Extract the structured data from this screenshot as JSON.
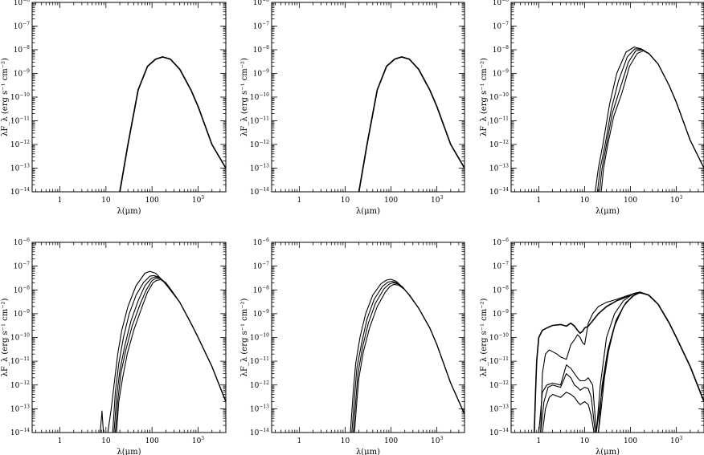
{
  "chart_data": [
    {
      "type": "line",
      "panel": "top-left",
      "xlabel": "λ(μm)",
      "ylabel": "λF_λ (erg s⁻¹ cm⁻²)",
      "x_scale": "log",
      "y_scale": "log",
      "xlim": [
        0.25,
        4000
      ],
      "ylim": [
        1e-14,
        1e-06
      ],
      "x_ticks": [
        "1",
        "10",
        "100",
        "10^3"
      ],
      "y_ticks": [
        "10^-14",
        "10^-13",
        "10^-12",
        "10^-11",
        "10^-10",
        "10^-9",
        "10^-8",
        "10^-7",
        "10^-6"
      ],
      "series": [
        {
          "x": [
            20,
            30,
            50,
            80,
            120,
            170,
            250,
            400,
            700,
            1000,
            2000,
            4000
          ],
          "y": [
            1e-14,
            1e-12,
            2e-10,
            2e-09,
            4e-09,
            5e-09,
            4e-09,
            1.5e-09,
            2e-10,
            4e-11,
            1e-12,
            1e-13
          ]
        }
      ]
    },
    {
      "type": "line",
      "panel": "top-middle",
      "xlabel": "λ(μm)",
      "ylabel": "λF_λ (erg s⁻¹ cm⁻²)",
      "x_scale": "log",
      "y_scale": "log",
      "xlim": [
        0.25,
        4000
      ],
      "ylim": [
        1e-14,
        1e-06
      ],
      "x_ticks": [
        "1",
        "10",
        "100",
        "10^3"
      ],
      "y_ticks": [
        "10^-14",
        "10^-13",
        "10^-12",
        "10^-11",
        "10^-10",
        "10^-9",
        "10^-8",
        "10^-7",
        "10^-6"
      ],
      "series": [
        {
          "x": [
            20,
            30,
            50,
            80,
            120,
            170,
            250,
            400,
            700,
            1000,
            2000,
            4000
          ],
          "y": [
            1e-14,
            1e-12,
            2e-10,
            2e-09,
            4e-09,
            5e-09,
            4e-09,
            1.5e-09,
            2e-10,
            4e-11,
            1e-12,
            1e-13
          ]
        }
      ]
    },
    {
      "type": "line",
      "panel": "top-right",
      "xlabel": "λ(μm)",
      "ylabel": "λF_λ (erg s⁻¹ cm⁻²)",
      "x_scale": "log",
      "y_scale": "log",
      "xlim": [
        0.25,
        4000
      ],
      "ylim": [
        1e-14,
        1e-06
      ],
      "x_ticks": [
        "1",
        "10",
        "100",
        "10^3"
      ],
      "y_ticks": [
        "10^-14",
        "10^-13",
        "10^-12",
        "10^-11",
        "10^-10",
        "10^-9",
        "10^-8",
        "10^-7",
        "10^-6"
      ],
      "series": [
        {
          "x": [
            17,
            20,
            25,
            35,
            50,
            80,
            120,
            170,
            250,
            400,
            700,
            1000,
            2000,
            4000
          ],
          "y": [
            1e-14,
            1e-13,
            1e-12,
            5e-11,
            1e-09,
            8e-09,
            1.3e-08,
            1.1e-08,
            7e-09,
            2.5e-09,
            3e-10,
            6e-11,
            1.5e-12,
            1e-13
          ]
        },
        {
          "x": [
            19,
            22,
            28,
            38,
            55,
            85,
            125,
            175,
            250,
            400,
            700,
            1000,
            2000,
            4000
          ],
          "y": [
            1e-14,
            1e-13,
            1e-12,
            3e-11,
            5e-10,
            5e-09,
            1.1e-08,
            1.05e-08,
            7e-09,
            2.5e-09,
            3e-10,
            6e-11,
            1.5e-12,
            1e-13
          ]
        },
        {
          "x": [
            21,
            24,
            30,
            40,
            60,
            90,
            130,
            180,
            250,
            400,
            700,
            1000,
            2000,
            4000
          ],
          "y": [
            1e-14,
            1e-13,
            1e-12,
            2e-11,
            2.5e-10,
            3e-09,
            9e-09,
            1e-08,
            7e-09,
            2.5e-09,
            3e-10,
            6e-11,
            1.5e-12,
            1e-13
          ]
        },
        {
          "x": [
            23,
            26,
            32,
            43,
            65,
            95,
            140,
            190,
            260,
            400,
            700,
            1000,
            2000,
            4000
          ],
          "y": [
            1e-14,
            1e-13,
            1e-12,
            1.5e-11,
            1.5e-10,
            2e-09,
            7e-09,
            9e-09,
            6.5e-09,
            2.5e-09,
            3e-10,
            6e-11,
            1.5e-12,
            1e-13
          ]
        }
      ]
    },
    {
      "type": "line",
      "panel": "bottom-left",
      "xlabel": "λ(μm)",
      "ylabel": "λF_λ (erg s⁻¹ cm⁻²)",
      "x_scale": "log",
      "y_scale": "log",
      "xlim": [
        0.25,
        4000
      ],
      "ylim": [
        1e-14,
        1e-06
      ],
      "x_ticks": [
        "1",
        "10",
        "100",
        "10^3"
      ],
      "y_ticks": [
        "10^-14",
        "10^-13",
        "10^-12",
        "10^-11",
        "10^-10",
        "10^-9",
        "10^-8",
        "10^-7",
        "10^-6"
      ],
      "series": [
        {
          "x": [
            7.5,
            8.2,
            8.8,
            9.5,
            11,
            13,
            15,
            18,
            22,
            30,
            45,
            70,
            90,
            120,
            170,
            250,
            400,
            700,
            1000,
            2000,
            4000
          ],
          "y": [
            1e-14,
            8e-14,
            1e-14,
            1e-14,
            1e-14,
            1e-13,
            1e-12,
            2e-11,
            2e-10,
            2e-09,
            1.5e-08,
            5e-08,
            6e-08,
            5e-08,
            2.5e-08,
            1e-08,
            3e-09,
            4e-10,
            1e-10,
            6e-12,
            2e-13
          ]
        },
        {
          "x": [
            14,
            16,
            19,
            24,
            32,
            45,
            65,
            90,
            110,
            140,
            190,
            250,
            400,
            700,
            1000,
            2000,
            4000
          ],
          "y": [
            1e-14,
            5e-13,
            8e-12,
            1e-10,
            1e-09,
            6e-09,
            2e-08,
            3.8e-08,
            4e-08,
            3.5e-08,
            2e-08,
            1e-08,
            3e-09,
            4e-10,
            1e-10,
            6e-12,
            2e-13
          ]
        },
        {
          "x": [
            15,
            17,
            20,
            26,
            35,
            50,
            70,
            95,
            115,
            145,
            190,
            250,
            400,
            700,
            1000,
            2000,
            4000
          ],
          "y": [
            1e-14,
            3e-13,
            4e-12,
            5e-11,
            5e-10,
            3.5e-09,
            1.5e-08,
            3e-08,
            3.5e-08,
            3.3e-08,
            2e-08,
            1e-08,
            3e-09,
            4e-10,
            1e-10,
            6e-12,
            2e-13
          ]
        },
        {
          "x": [
            16,
            18,
            21,
            27,
            37,
            55,
            75,
            100,
            120,
            150,
            200,
            260,
            400,
            700,
            1000,
            2000,
            4000
          ],
          "y": [
            1e-14,
            2e-13,
            3e-12,
            3e-11,
            3e-10,
            2.5e-09,
            1e-08,
            2.5e-08,
            3e-08,
            3e-08,
            2e-08,
            1e-08,
            3e-09,
            4e-10,
            1e-10,
            6e-12,
            2e-13
          ]
        },
        {
          "x": [
            17,
            19,
            23,
            29,
            40,
            60,
            80,
            105,
            125,
            155,
            200,
            260,
            400,
            700,
            1000,
            2000,
            4000
          ],
          "y": [
            1e-14,
            2e-13,
            2e-12,
            2e-11,
            2e-10,
            1.8e-09,
            8e-09,
            2e-08,
            2.5e-08,
            2.7e-08,
            1.9e-08,
            1e-08,
            3e-09,
            4e-10,
            1e-10,
            6e-12,
            2e-13
          ]
        }
      ]
    },
    {
      "type": "line",
      "panel": "bottom-middle",
      "xlabel": "λ(μm)",
      "ylabel": "λF_λ (erg s⁻¹ cm⁻²)",
      "x_scale": "log",
      "y_scale": "log",
      "xlim": [
        0.25,
        4000
      ],
      "ylim": [
        1e-14,
        1e-06
      ],
      "x_ticks": [
        "1",
        "10",
        "100",
        "10^3"
      ],
      "y_ticks": [
        "10^-14",
        "10^-13",
        "10^-12",
        "10^-11",
        "10^-10",
        "10^-9",
        "10^-8",
        "10^-7",
        "10^-6"
      ],
      "series": [
        {
          "x": [
            13,
            15,
            17,
            21,
            28,
            40,
            60,
            80,
            100,
            130,
            180,
            250,
            400,
            700,
            1000,
            2000,
            4000
          ],
          "y": [
            1e-14,
            5e-13,
            8e-12,
            1e-10,
            1e-09,
            6e-09,
            1.8e-08,
            2.6e-08,
            2.8e-08,
            2.3e-08,
            1.3e-08,
            6e-09,
            1.7e-09,
            2.5e-10,
            5e-11,
            1.2e-12,
            6e-14
          ]
        },
        {
          "x": [
            14,
            16,
            18,
            23,
            30,
            43,
            65,
            85,
            105,
            135,
            180,
            250,
            400,
            700,
            1000,
            2000,
            4000
          ],
          "y": [
            1e-14,
            3e-13,
            5e-12,
            6e-11,
            6e-10,
            4e-09,
            1.4e-08,
            2.1e-08,
            2.3e-08,
            2e-08,
            1.3e-08,
            6e-09,
            1.7e-09,
            2.5e-10,
            5e-11,
            1.2e-12,
            6e-14
          ]
        },
        {
          "x": [
            15,
            17,
            19,
            24,
            32,
            46,
            70,
            90,
            110,
            140,
            185,
            250,
            400,
            700,
            1000,
            2000,
            4000
          ],
          "y": [
            1e-14,
            2e-13,
            3e-12,
            4e-11,
            4e-10,
            2.8e-09,
            1.1e-08,
            1.7e-08,
            2e-08,
            1.8e-08,
            1.2e-08,
            6e-09,
            1.7e-09,
            2.5e-10,
            5e-11,
            1.2e-12,
            6e-14
          ]
        },
        {
          "x": [
            16,
            18,
            20,
            25,
            34,
            50,
            75,
            95,
            115,
            145,
            190,
            255,
            400,
            700,
            1000,
            2000,
            4000
          ],
          "y": [
            1e-14,
            2e-13,
            2e-12,
            2.5e-11,
            2.5e-10,
            2e-09,
            8e-09,
            1.4e-08,
            1.7e-08,
            1.6e-08,
            1.1e-08,
            6e-09,
            1.7e-09,
            2.5e-10,
            5e-11,
            1.2e-12,
            6e-14
          ]
        }
      ]
    },
    {
      "type": "line",
      "panel": "bottom-right",
      "xlabel": "λ(μm)",
      "ylabel": "λF_λ (erg s⁻¹ cm⁻²)",
      "x_scale": "log",
      "y_scale": "log",
      "xlim": [
        0.25,
        4000
      ],
      "ylim": [
        1e-14,
        1e-06
      ],
      "x_ticks": [
        "1",
        "10",
        "100",
        "10^3"
      ],
      "y_ticks": [
        "10^-14",
        "10^-13",
        "10^-12",
        "10^-11",
        "10^-10",
        "10^-9",
        "10^-8",
        "10^-7",
        "10^-6"
      ],
      "series": [
        {
          "x": [
            0.8,
            0.85,
            0.9,
            1.0,
            1.2,
            1.5,
            2,
            3,
            4,
            5,
            6,
            7,
            8,
            9,
            10,
            12,
            15,
            20,
            30,
            50,
            80,
            120,
            160,
            250,
            400,
            700,
            1000,
            2000,
            4000
          ],
          "y": [
            1e-14,
            4e-13,
            1e-11,
            1e-10,
            2e-10,
            2.5e-10,
            3.2e-10,
            3.5e-10,
            3e-10,
            4e-10,
            3e-10,
            2e-10,
            1.5e-10,
            1.8e-10,
            2.5e-10,
            3e-10,
            5e-10,
            1e-09,
            2e-09,
            3.5e-09,
            5e-09,
            7e-09,
            8e-09,
            6e-09,
            2.5e-09,
            4e-10,
            1e-10,
            6e-12,
            2e-13
          ]
        },
        {
          "x": [
            1.1,
            1.2,
            1.4,
            1.7,
            2,
            2.5,
            3,
            4,
            5,
            6,
            7,
            8,
            9,
            10,
            12,
            15,
            20,
            30,
            50,
            80,
            120,
            160,
            250,
            400,
            700,
            1000,
            2000,
            4000
          ],
          "y": [
            1e-14,
            3e-12,
            2e-11,
            3e-11,
            2.5e-11,
            2e-11,
            1.5e-11,
            1.2e-11,
            5e-11,
            8e-11,
            1.3e-10,
            1e-10,
            6e-11,
            5e-11,
            4e-10,
            1e-09,
            2e-09,
            3e-09,
            4e-09,
            5.5e-09,
            7e-09,
            8e-09,
            6e-09,
            2.5e-09,
            4e-10,
            1e-10,
            6e-12,
            2e-13
          ]
        },
        {
          "x": [
            1.0,
            1.2,
            1.5,
            2,
            3,
            4,
            5,
            6,
            7,
            8,
            10,
            12,
            15,
            18,
            22,
            30,
            45,
            70,
            110,
            160,
            250,
            400,
            700,
            1000,
            2000,
            4000
          ],
          "y": [
            1e-14,
            5e-13,
            1e-12,
            1.2e-12,
            1e-12,
            7e-12,
            5e-12,
            3e-12,
            2e-12,
            1.5e-12,
            1.5e-12,
            2e-12,
            1e-12,
            1e-14,
            1e-12,
            1e-10,
            1e-09,
            3.5e-09,
            6.5e-09,
            8e-09,
            6e-09,
            2.5e-09,
            4e-10,
            1e-10,
            6e-12,
            2e-13
          ]
        },
        {
          "x": [
            1.1,
            1.3,
            1.6,
            2,
            3,
            4,
            5,
            6,
            7,
            8,
            10,
            12,
            14,
            17,
            20,
            24,
            32,
            48,
            75,
            115,
            160,
            250,
            400,
            700,
            1000,
            2000,
            4000
          ],
          "y": [
            1e-14,
            2e-13,
            8e-13,
            1e-12,
            8e-13,
            3e-12,
            2e-12,
            1e-12,
            8e-13,
            6e-13,
            8e-13,
            7e-13,
            3e-13,
            1e-14,
            1e-14,
            1e-12,
            3e-11,
            5e-10,
            2.5e-09,
            5.5e-09,
            8e-09,
            6e-09,
            2.5e-09,
            4e-10,
            1e-10,
            6e-12,
            2e-13
          ]
        },
        {
          "x": [
            1.2,
            1.4,
            1.7,
            2,
            3,
            4,
            5,
            6,
            7,
            8,
            10,
            12,
            14,
            16,
            18,
            20,
            23,
            27,
            35,
            50,
            80,
            120,
            160,
            250,
            400,
            700,
            1000,
            2000,
            4000
          ],
          "y": [
            1e-14,
            1e-13,
            3e-13,
            4e-13,
            3e-13,
            5e-13,
            4e-13,
            3e-13,
            2e-13,
            1.5e-13,
            2e-13,
            1.5e-13,
            5e-14,
            1e-14,
            1e-14,
            1e-14,
            1e-13,
            2e-12,
            5e-11,
            6e-10,
            3e-09,
            6e-09,
            8e-09,
            6e-09,
            2.5e-09,
            4e-10,
            1e-10,
            6e-12,
            2e-13
          ]
        },
        {
          "x": [
            18,
            21,
            25,
            32,
            45,
            70,
            110,
            160,
            250,
            400,
            700,
            1000,
            2000,
            4000
          ],
          "y": [
            1e-14,
            1e-13,
            1e-12,
            2e-11,
            3e-10,
            2e-09,
            5.5e-09,
            7.5e-09,
            6e-09,
            2.5e-09,
            4e-10,
            1e-10,
            6e-12,
            2e-13
          ]
        }
      ]
    }
  ]
}
